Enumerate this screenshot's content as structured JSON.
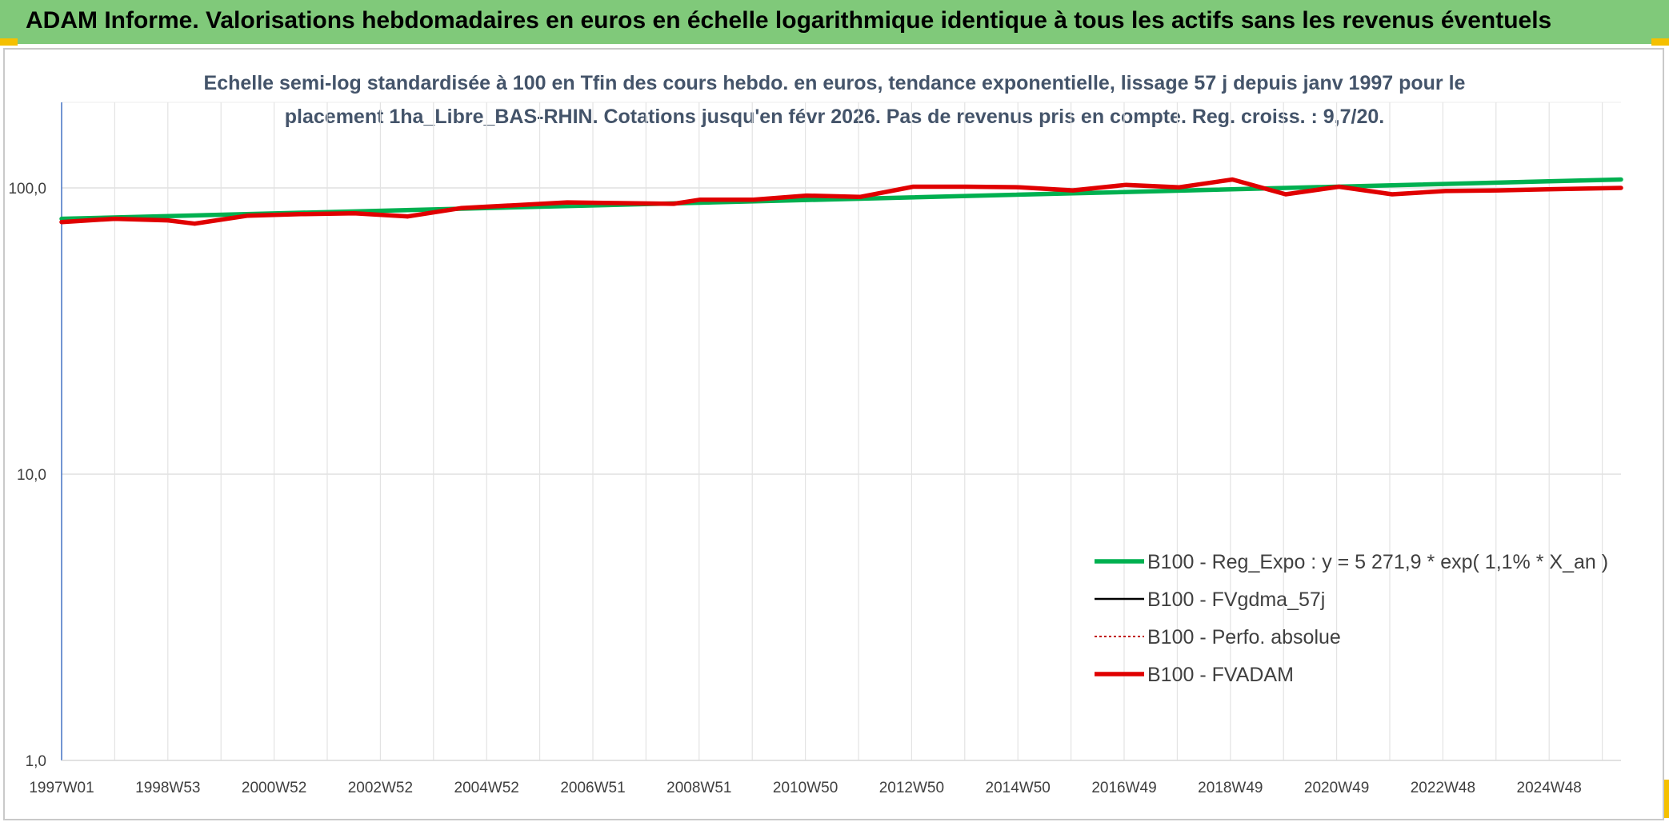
{
  "header": {
    "title": "ADAM Informe. Valorisations hebdomadaires en euros en échelle logarithmique identique à tous les actifs sans les revenus éventuels"
  },
  "chart_data": {
    "type": "line",
    "title_line1": "Echelle semi-log standardisée à 100 en Tfin des cours hebdo. en euros, tendance exponentielle, lissage 57 j depuis janv 1997 pour le",
    "title_line2": "placement 1ha_Libre_BAS-RHIN. Cotations jusqu'en févr 2026. Pas de revenus pris en compte. Reg. croiss. : 9,7/20.",
    "y_scale": "log",
    "ylim": [
      1,
      100
    ],
    "y_ticks": [
      "1,0",
      "10,0",
      "100,0"
    ],
    "x_ticks": [
      "1997W01",
      "1998W53",
      "2000W52",
      "2002W52",
      "2004W52",
      "2006W51",
      "2008W51",
      "2010W50",
      "2012W50",
      "2014W50",
      "2016W49",
      "2018W49",
      "2020W49",
      "2022W48",
      "2024W48"
    ],
    "xlim": [
      1997.0,
      2026.3
    ],
    "grid": true,
    "legend_position": "bottom-right",
    "series": [
      {
        "name": "B100 - Reg_Expo : y = 5 271,9 * exp( 1,1% *  X_an )",
        "color": "#00b050",
        "style": "solid-thick",
        "x": [
          1997.0,
          2026.3
        ],
        "values": [
          78.0,
          107.0
        ]
      },
      {
        "name": "B100 - FVgdma_57j",
        "color": "#000000",
        "style": "solid-thin",
        "x": [],
        "values": []
      },
      {
        "name": "B100 - Perfo. absolue",
        "color": "#c00000",
        "style": "dotted",
        "x": [],
        "values": []
      },
      {
        "name": "B100 - FVADAM",
        "color": "#e00000",
        "style": "solid-thick",
        "x": [
          1997.0,
          1998.0,
          1999.0,
          1999.5,
          2000.5,
          2001.5,
          2002.5,
          2003.5,
          2004.5,
          2005.5,
          2006.5,
          2007.5,
          2008.5,
          2009.0,
          2010.0,
          2011.0,
          2012.0,
          2013.0,
          2014.0,
          2015.0,
          2016.0,
          2017.0,
          2018.0,
          2019.0,
          2020.0,
          2021.0,
          2022.0,
          2023.0,
          2024.0,
          2025.0,
          2026.3
        ],
        "values": [
          76.0,
          78.0,
          77.0,
          75.0,
          80.0,
          81.0,
          81.5,
          79.5,
          85.0,
          87.0,
          89.0,
          88.5,
          88.0,
          91.0,
          91.0,
          94.0,
          93.0,
          101.0,
          101.0,
          100.5,
          98.0,
          102.5,
          100.5,
          107.0,
          95.0,
          101.0,
          95.0,
          97.5,
          98.0,
          99.0,
          100.0
        ]
      }
    ]
  }
}
